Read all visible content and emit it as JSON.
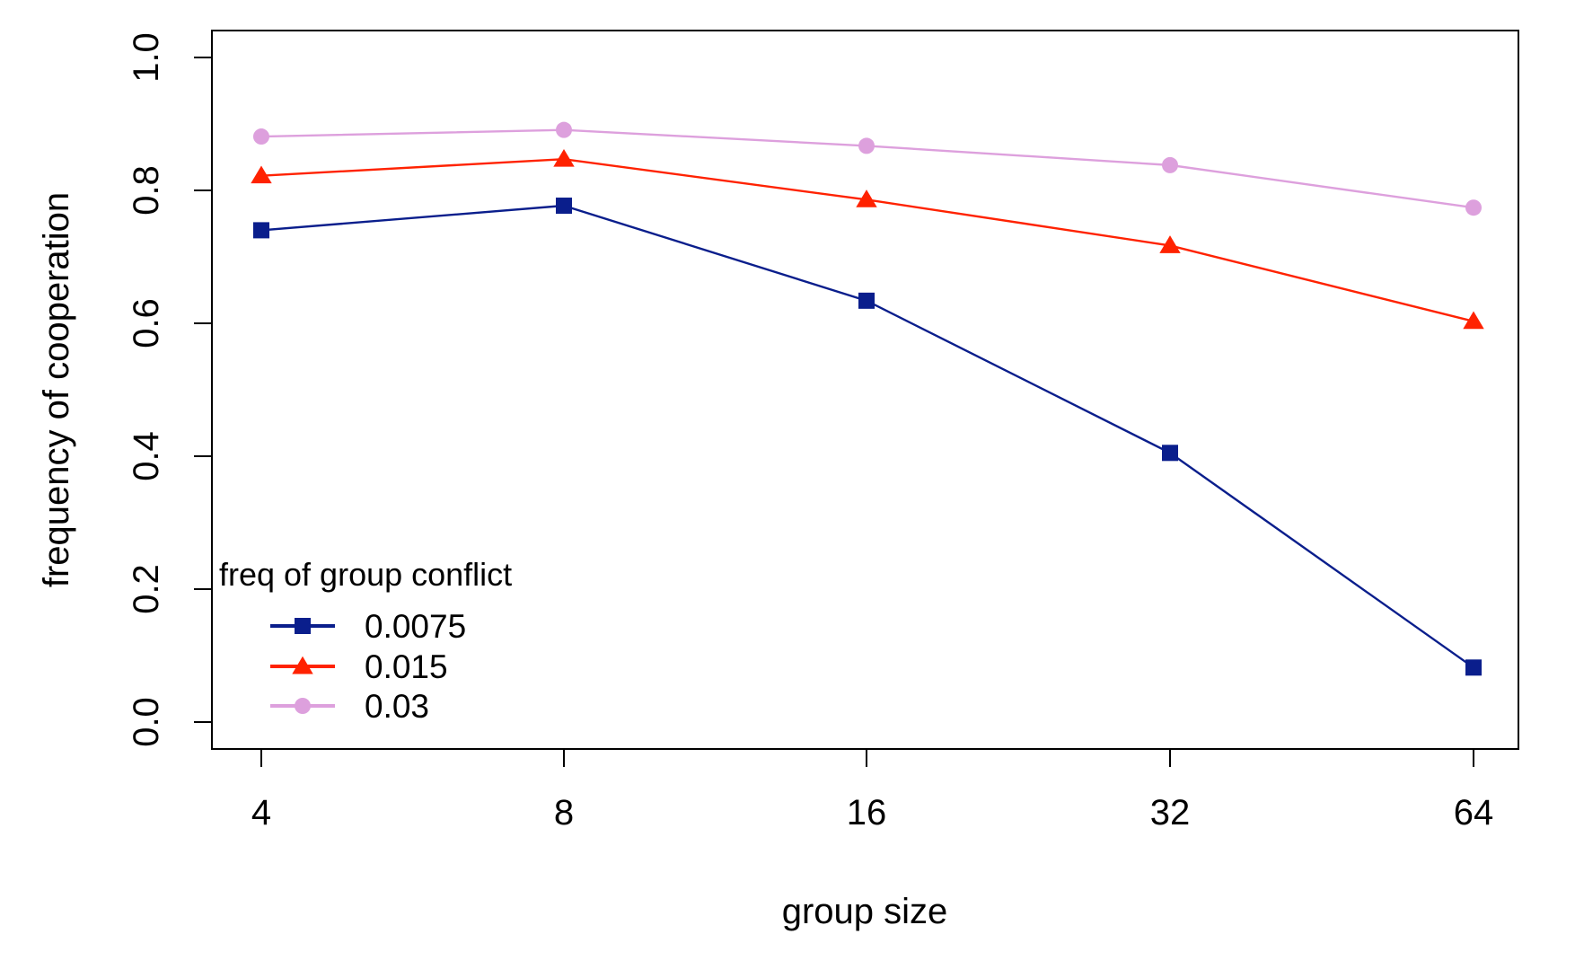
{
  "chart_data": {
    "type": "line",
    "title": "",
    "xlabel": "group size",
    "ylabel": "frequency of cooperation",
    "categories": [
      "4",
      "8",
      "16",
      "32",
      "64"
    ],
    "ylim": [
      0,
      1
    ],
    "yticks": [
      "0.0",
      "0.2",
      "0.4",
      "0.6",
      "0.8",
      "1.0"
    ],
    "grid": false,
    "legend": {
      "title": "freq of group conflict",
      "position": "bottom-left"
    },
    "series": [
      {
        "name": "0.0075",
        "color": "#0a1e8c",
        "marker": "square",
        "values": [
          0.74,
          0.777,
          0.634,
          0.405,
          0.082
        ]
      },
      {
        "name": "0.015",
        "color": "#ff2200",
        "marker": "triangle",
        "values": [
          0.822,
          0.847,
          0.786,
          0.717,
          0.603
        ]
      },
      {
        "name": "0.03",
        "color": "#dda0dd",
        "marker": "circle",
        "values": [
          0.881,
          0.891,
          0.867,
          0.838,
          0.774
        ]
      }
    ]
  }
}
